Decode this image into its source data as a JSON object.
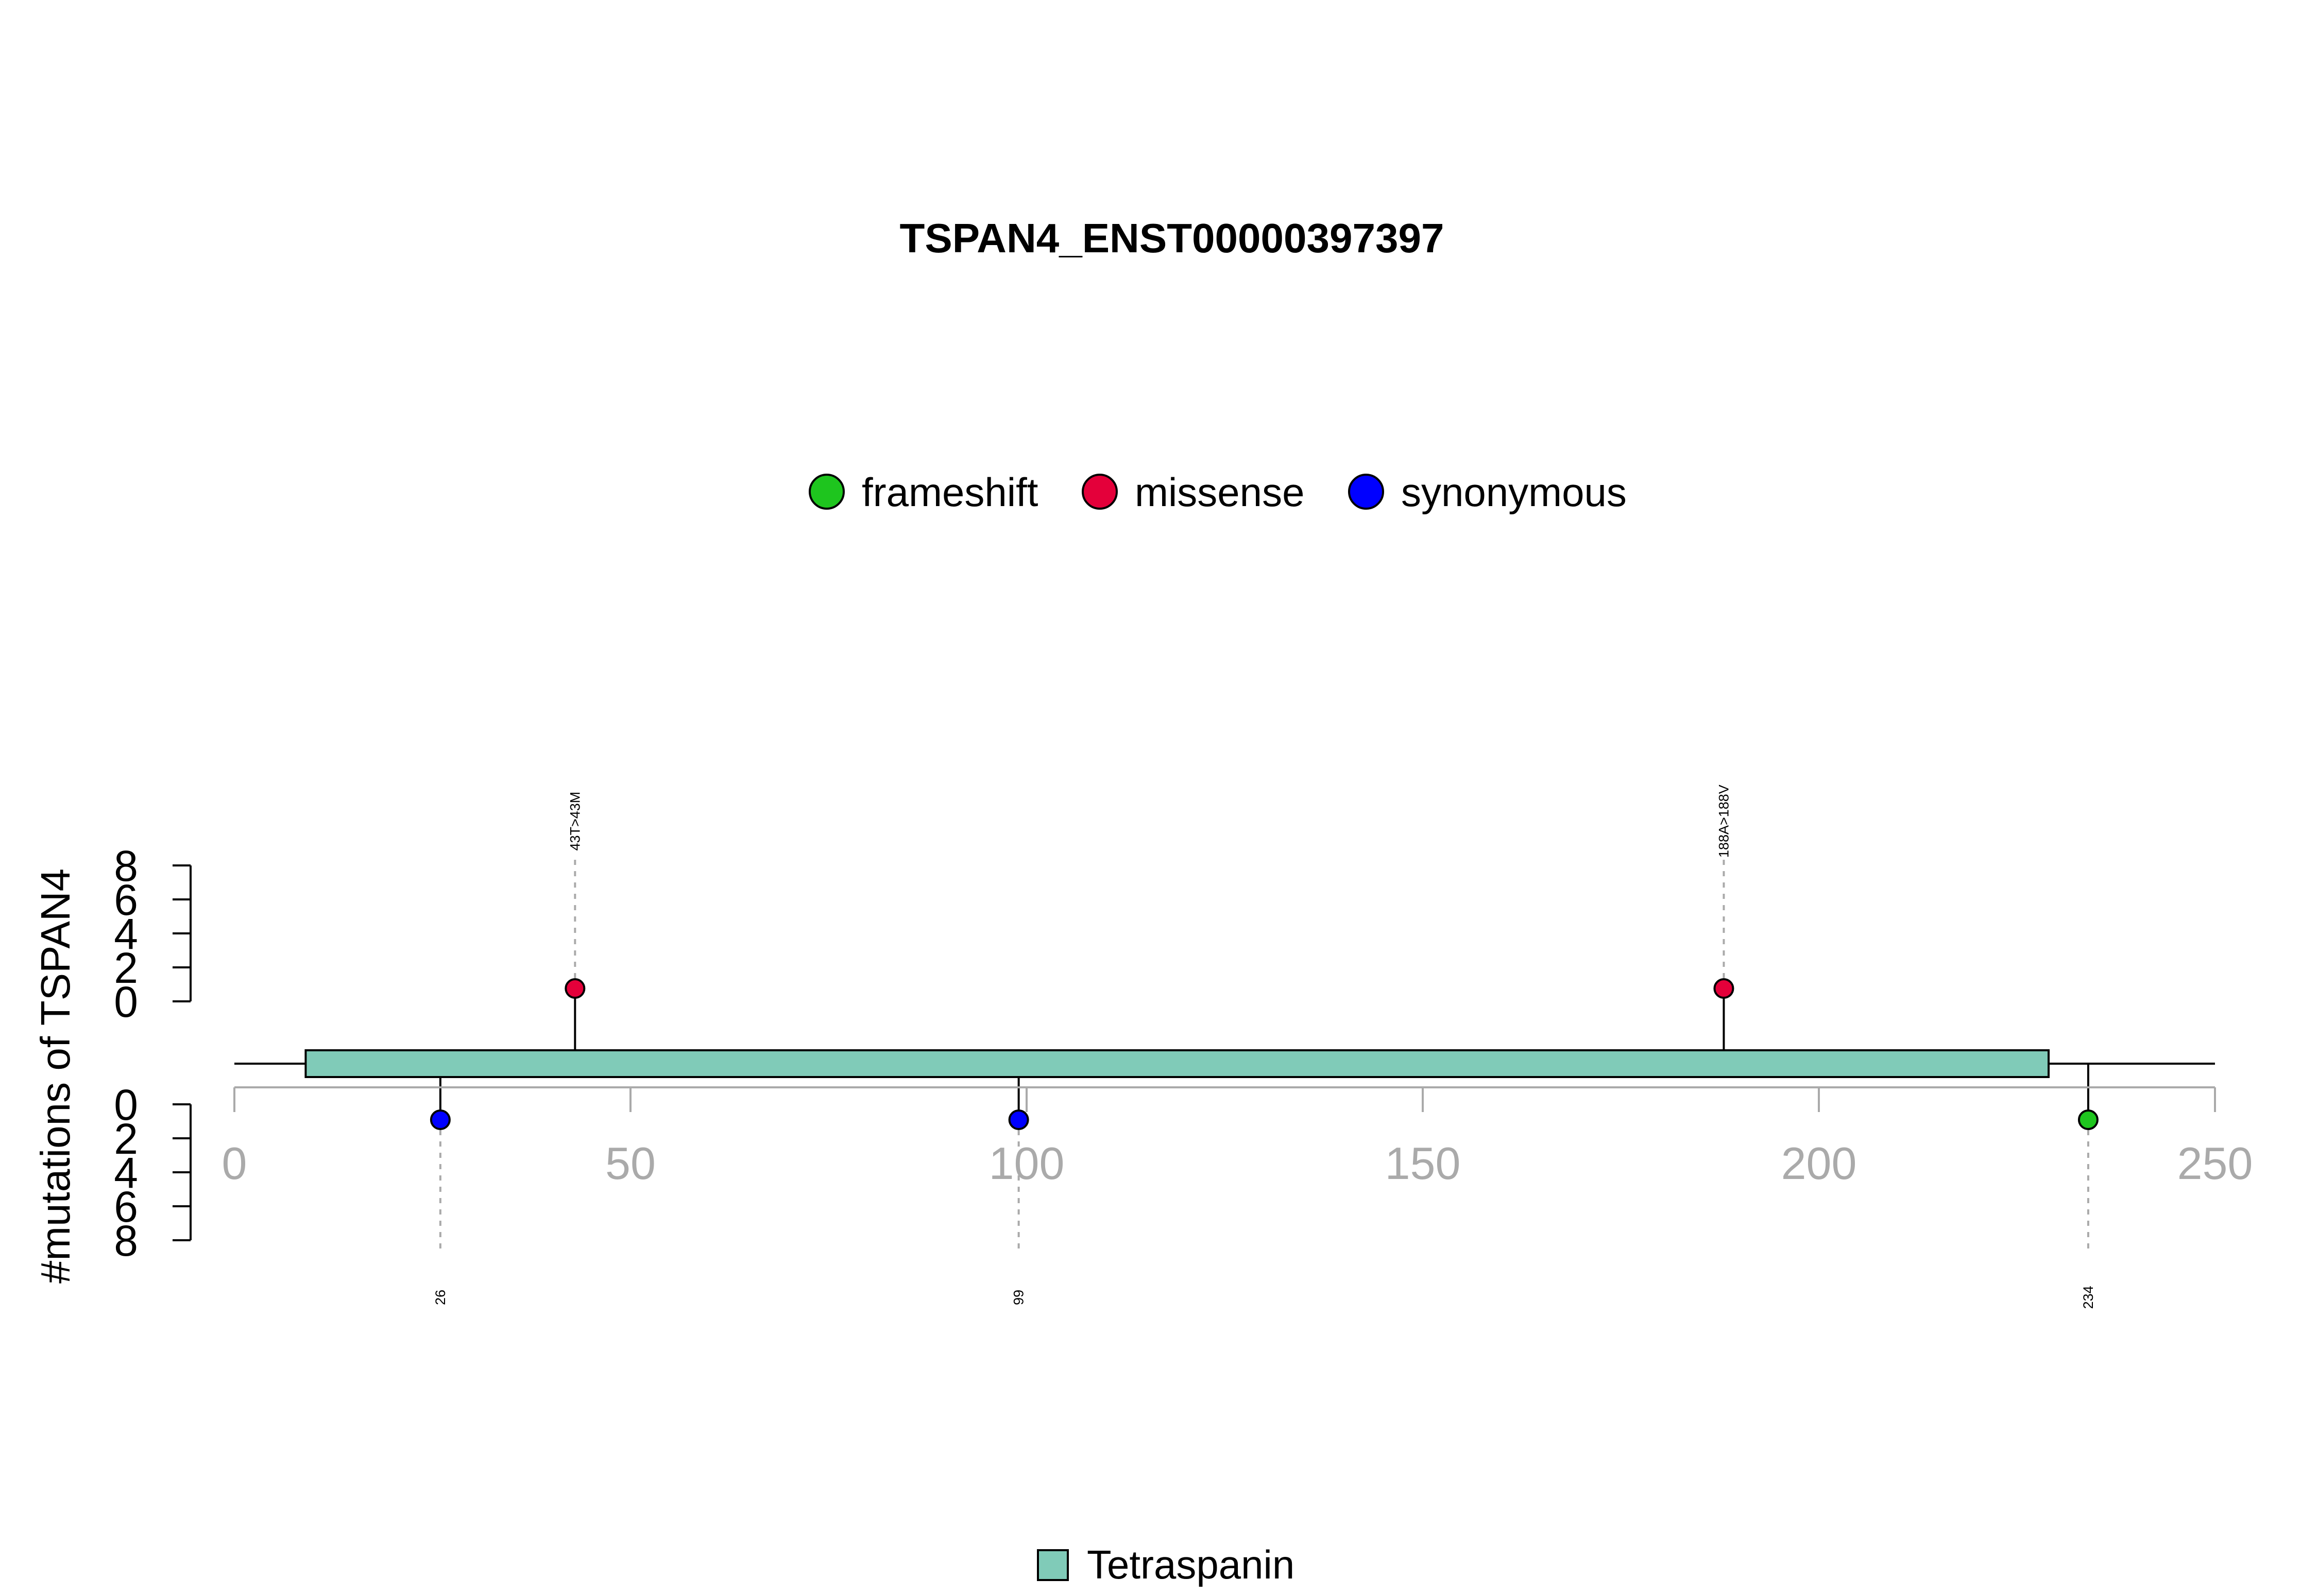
{
  "chart_data": {
    "type": "lollipop",
    "title": "TSPAN4_ENST00000397397",
    "ylabel": "#mutations of TSPAN4",
    "xlim": [
      0,
      250
    ],
    "x_ticks": [
      "0",
      "50",
      "100",
      "150",
      "200",
      "250"
    ],
    "y_ticks": [
      "0",
      "2",
      "4",
      "6",
      "8"
    ],
    "legend_top": [
      {
        "name": "frameshift",
        "color": "#1ec51e"
      },
      {
        "name": "missense",
        "color": "#e4003a"
      },
      {
        "name": "synonymous",
        "color": "#0000ff"
      }
    ],
    "domains": [
      {
        "name": "Tetraspanin",
        "start": 9,
        "end": 229,
        "color": "#80cbb8"
      }
    ],
    "mutations_top": [
      {
        "position": 43,
        "label": "43T>43M",
        "type": "missense",
        "count": 1,
        "color": "#e4003a"
      },
      {
        "position": 188,
        "label": "188A>188V",
        "type": "missense",
        "count": 1,
        "color": "#e4003a"
      }
    ],
    "mutations_bottom": [
      {
        "position": 26,
        "label": "26",
        "type": "synonymous",
        "count": 1,
        "color": "#0000ff"
      },
      {
        "position": 99,
        "label": "99",
        "type": "synonymous",
        "count": 1,
        "color": "#0000ff"
      },
      {
        "position": 234,
        "label": "234",
        "type": "frameshift",
        "count": 1,
        "color": "#1ec51e"
      }
    ]
  }
}
